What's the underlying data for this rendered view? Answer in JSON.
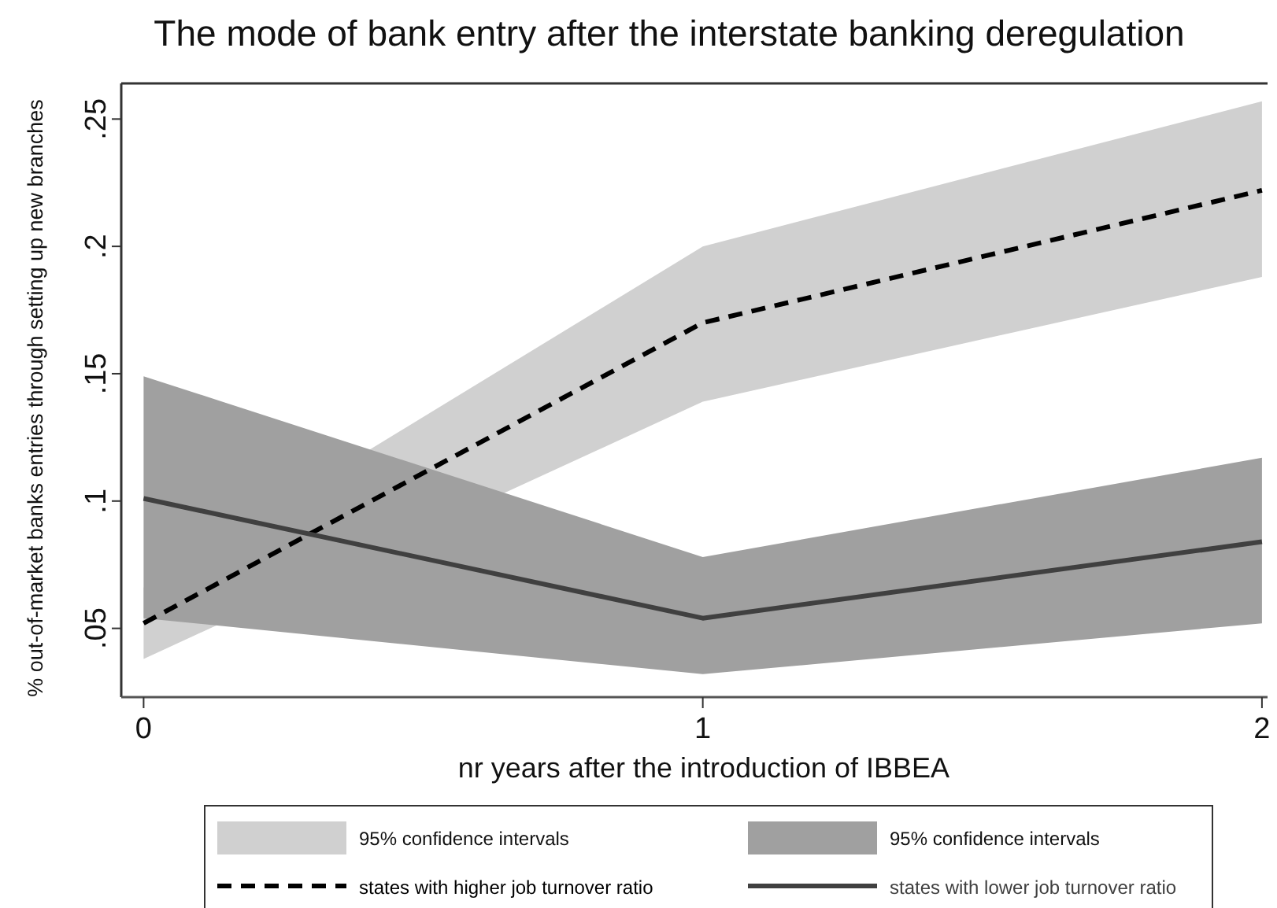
{
  "chart_data": {
    "type": "line",
    "title": "The mode of bank entry after the interstate banking deregulation",
    "xlabel": "nr years after the introduction of IBBEA",
    "ylabel": "% out-of-market banks entries through setting up new branches",
    "x": [
      0,
      1,
      2
    ],
    "xlim": [
      -0.04,
      2.01
    ],
    "xticks": [
      0,
      1,
      2
    ],
    "ylim": [
      0.023,
      0.264
    ],
    "yticks": [
      {
        "value": 0.05,
        "label": ".05"
      },
      {
        "value": 0.1,
        "label": ".1"
      },
      {
        "value": 0.15,
        "label": ".15"
      },
      {
        "value": 0.2,
        "label": ".2"
      },
      {
        "value": 0.25,
        "label": ".25"
      }
    ],
    "grid": false,
    "legend": "bottom",
    "annotations": [
      "95% confidence intervals",
      "95% confidence intervals"
    ],
    "series": [
      {
        "type": "line",
        "name": "states with higher job turnover ratio",
        "color": "#000000",
        "line_style": "dashed",
        "values": [
          0.052,
          0.17,
          0.222
        ],
        "lower": [
          0.038,
          0.139,
          0.188
        ],
        "upper": [
          0.066,
          0.2,
          0.257
        ]
      },
      {
        "type": "line",
        "name": "states with lower job turnover ratio",
        "color": "#404040",
        "line_style": "solid",
        "values": [
          0.101,
          0.054,
          0.084
        ],
        "lower": [
          0.054,
          0.032,
          0.052
        ],
        "upper": [
          0.149,
          0.078,
          0.117
        ]
      }
    ]
  }
}
